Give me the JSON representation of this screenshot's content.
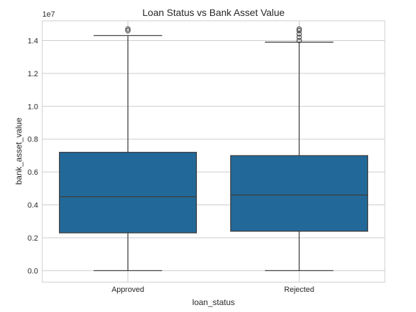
{
  "chart_data": {
    "type": "box",
    "title": "Loan Status vs Bank Asset Value",
    "xlabel": "loan_status",
    "ylabel": "bank_asset_value",
    "y_offset_label": "1e7",
    "ylim": [
      -0.07,
      1.52
    ],
    "y_ticks": [
      0.0,
      0.2,
      0.4,
      0.6,
      0.8,
      1.0,
      1.2,
      1.4
    ],
    "y_tick_labels": [
      "0.0",
      "0.2",
      "0.4",
      "0.6",
      "0.8",
      "1.0",
      "1.2",
      "1.4"
    ],
    "grid": true,
    "box_color": "#22699a",
    "categories": [
      "Approved",
      "Rejected"
    ],
    "boxes": [
      {
        "category": "Approved",
        "whisker_low": 0.0,
        "q1": 0.23,
        "median": 0.45,
        "q3": 0.72,
        "whisker_high": 1.43,
        "outliers": [
          1.46,
          1.47
        ]
      },
      {
        "category": "Rejected",
        "whisker_low": 0.0,
        "q1": 0.24,
        "median": 0.46,
        "q3": 0.7,
        "whisker_high": 1.39,
        "outliers": [
          1.4,
          1.42,
          1.44,
          1.46,
          1.47
        ]
      }
    ]
  }
}
